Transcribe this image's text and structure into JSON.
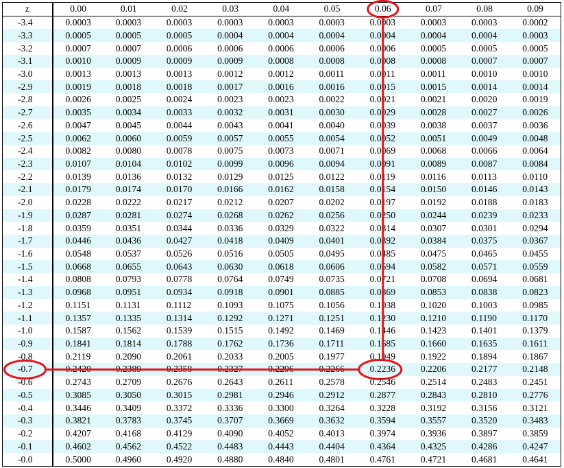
{
  "table": {
    "z_header": "z",
    "column_headers": [
      "0.00",
      "0.01",
      "0.02",
      "0.03",
      "0.04",
      "0.05",
      "0.06",
      "0.07",
      "0.08",
      "0.09"
    ],
    "rows": [
      {
        "z": "-3.4",
        "values": [
          "0.0003",
          "0.0003",
          "0.0003",
          "0.0003",
          "0.0003",
          "0.0003",
          "0.0003",
          "0.0003",
          "0.0003",
          "0.0002"
        ]
      },
      {
        "z": "-3.3",
        "values": [
          "0.0005",
          "0.0005",
          "0.0005",
          "0.0004",
          "0.0004",
          "0.0004",
          "0.0004",
          "0.0004",
          "0.0004",
          "0.0003"
        ]
      },
      {
        "z": "-3.2",
        "values": [
          "0.0007",
          "0.0007",
          "0.0006",
          "0.0006",
          "0.0006",
          "0.0006",
          "0.0006",
          "0.0005",
          "0.0005",
          "0.0005"
        ]
      },
      {
        "z": "-3.1",
        "values": [
          "0.0010",
          "0.0009",
          "0.0009",
          "0.0009",
          "0.0008",
          "0.0008",
          "0.0008",
          "0.0008",
          "0.0007",
          "0.0007"
        ]
      },
      {
        "z": "-3.0",
        "values": [
          "0.0013",
          "0.0013",
          "0.0013",
          "0.0012",
          "0.0012",
          "0.0011",
          "0.0011",
          "0.0011",
          "0.0010",
          "0.0010"
        ]
      },
      {
        "z": "-2.9",
        "values": [
          "0.0019",
          "0.0018",
          "0.0018",
          "0.0017",
          "0.0016",
          "0.0016",
          "0.0015",
          "0.0015",
          "0.0014",
          "0.0014"
        ]
      },
      {
        "z": "-2.8",
        "values": [
          "0.0026",
          "0.0025",
          "0.0024",
          "0.0023",
          "0.0023",
          "0.0022",
          "0.0021",
          "0.0021",
          "0.0020",
          "0.0019"
        ]
      },
      {
        "z": "-2.7",
        "values": [
          "0.0035",
          "0.0034",
          "0.0033",
          "0.0032",
          "0.0031",
          "0.0030",
          "0.0029",
          "0.0028",
          "0.0027",
          "0.0026"
        ]
      },
      {
        "z": "-2.6",
        "values": [
          "0.0047",
          "0.0045",
          "0.0044",
          "0.0043",
          "0.0041",
          "0.0040",
          "0.0039",
          "0.0038",
          "0.0037",
          "0.0036"
        ]
      },
      {
        "z": "-2.5",
        "values": [
          "0.0062",
          "0.0060",
          "0.0059",
          "0.0057",
          "0.0055",
          "0.0054",
          "0.0052",
          "0.0051",
          "0.0049",
          "0.0048"
        ]
      },
      {
        "z": "-2.4",
        "values": [
          "0.0082",
          "0.0080",
          "0.0078",
          "0.0075",
          "0.0073",
          "0.0071",
          "0.0069",
          "0.0068",
          "0.0066",
          "0.0064"
        ]
      },
      {
        "z": "-2.3",
        "values": [
          "0.0107",
          "0.0104",
          "0.0102",
          "0.0099",
          "0.0096",
          "0.0094",
          "0.0091",
          "0.0089",
          "0.0087",
          "0.0084"
        ]
      },
      {
        "z": "-2.2",
        "values": [
          "0.0139",
          "0.0136",
          "0.0132",
          "0.0129",
          "0.0125",
          "0.0122",
          "0.0119",
          "0.0116",
          "0.0113",
          "0.0110"
        ]
      },
      {
        "z": "-2.1",
        "values": [
          "0.0179",
          "0.0174",
          "0.0170",
          "0.0166",
          "0.0162",
          "0.0158",
          "0.0154",
          "0.0150",
          "0.0146",
          "0.0143"
        ]
      },
      {
        "z": "-2.0",
        "values": [
          "0.0228",
          "0.0222",
          "0.0217",
          "0.0212",
          "0.0207",
          "0.0202",
          "0.0197",
          "0.0192",
          "0.0188",
          "0.0183"
        ]
      },
      {
        "z": "-1.9",
        "values": [
          "0.0287",
          "0.0281",
          "0.0274",
          "0.0268",
          "0.0262",
          "0.0256",
          "0.0250",
          "0.0244",
          "0.0239",
          "0.0233"
        ]
      },
      {
        "z": "-1.8",
        "values": [
          "0.0359",
          "0.0351",
          "0.0344",
          "0.0336",
          "0.0329",
          "0.0322",
          "0.0314",
          "0.0307",
          "0.0301",
          "0.0294"
        ]
      },
      {
        "z": "-1.7",
        "values": [
          "0.0446",
          "0.0436",
          "0.0427",
          "0.0418",
          "0.0409",
          "0.0401",
          "0.0392",
          "0.0384",
          "0.0375",
          "0.0367"
        ]
      },
      {
        "z": "-1.6",
        "values": [
          "0.0548",
          "0.0537",
          "0.0526",
          "0.0516",
          "0.0505",
          "0.0495",
          "0.0485",
          "0.0475",
          "0.0465",
          "0.0455"
        ]
      },
      {
        "z": "-1.5",
        "values": [
          "0.0668",
          "0.0655",
          "0.0643",
          "0.0630",
          "0.0618",
          "0.0606",
          "0.0594",
          "0.0582",
          "0.0571",
          "0.0559"
        ]
      },
      {
        "z": "-1.4",
        "values": [
          "0.0808",
          "0.0793",
          "0.0778",
          "0.0764",
          "0.0749",
          "0.0735",
          "0.0721",
          "0.0708",
          "0.0694",
          "0.0681"
        ]
      },
      {
        "z": "-1.3",
        "values": [
          "0.0968",
          "0.0951",
          "0.0934",
          "0.0918",
          "0.0901",
          "0.0885",
          "0.0869",
          "0.0853",
          "0.0838",
          "0.0823"
        ]
      },
      {
        "z": "-1.2",
        "values": [
          "0.1151",
          "0.1131",
          "0.1112",
          "0.1093",
          "0.1075",
          "0.1056",
          "0.1038",
          "0.1020",
          "0.1003",
          "0.0985"
        ]
      },
      {
        "z": "-1.1",
        "values": [
          "0.1357",
          "0.1335",
          "0.1314",
          "0.1292",
          "0.1271",
          "0.1251",
          "0.1230",
          "0.1210",
          "0.1190",
          "0.1170"
        ]
      },
      {
        "z": "-1.0",
        "values": [
          "0.1587",
          "0.1562",
          "0.1539",
          "0.1515",
          "0.1492",
          "0.1469",
          "0.1446",
          "0.1423",
          "0.1401",
          "0.1379"
        ]
      },
      {
        "z": "-0.9",
        "values": [
          "0.1841",
          "0.1814",
          "0.1788",
          "0.1762",
          "0.1736",
          "0.1711",
          "0.1685",
          "0.1660",
          "0.1635",
          "0.1611"
        ]
      },
      {
        "z": "-0.8",
        "values": [
          "0.2119",
          "0.2090",
          "0.2061",
          "0.2033",
          "0.2005",
          "0.1977",
          "0.1949",
          "0.1922",
          "0.1894",
          "0.1867"
        ]
      },
      {
        "z": "-0.7",
        "values": [
          "0.2420",
          "0.2389",
          "0.2358",
          "0.2327",
          "0.2296",
          "0.2266",
          "0.2236",
          "0.2206",
          "0.2177",
          "0.2148"
        ]
      },
      {
        "z": "-0.6",
        "values": [
          "0.2743",
          "0.2709",
          "0.2676",
          "0.2643",
          "0.2611",
          "0.2578",
          "0.2546",
          "0.2514",
          "0.2483",
          "0.2451"
        ]
      },
      {
        "z": "-0.5",
        "values": [
          "0.3085",
          "0.3050",
          "0.3015",
          "0.2981",
          "0.2946",
          "0.2912",
          "0.2877",
          "0.2843",
          "0.2810",
          "0.2776"
        ]
      },
      {
        "z": "-0.4",
        "values": [
          "0.3446",
          "0.3409",
          "0.3372",
          "0.3336",
          "0.3300",
          "0.3264",
          "0.3228",
          "0.3192",
          "0.3156",
          "0.3121"
        ]
      },
      {
        "z": "-0.3",
        "values": [
          "0.3821",
          "0.3783",
          "0.3745",
          "0.3707",
          "0.3669",
          "0.3632",
          "0.3594",
          "0.3557",
          "0.3520",
          "0.3483"
        ]
      },
      {
        "z": "-0.2",
        "values": [
          "0.4207",
          "0.4168",
          "0.4129",
          "0.4090",
          "0.4052",
          "0.4013",
          "0.3974",
          "0.3936",
          "0.3897",
          "0.3859"
        ]
      },
      {
        "z": "-0.1",
        "values": [
          "0.4602",
          "0.4562",
          "0.4522",
          "0.4483",
          "0.4443",
          "0.4404",
          "0.4364",
          "0.4325",
          "0.4286",
          "0.4247"
        ]
      },
      {
        "z": "-0.0",
        "values": [
          "0.5000",
          "0.4960",
          "0.4920",
          "0.4880",
          "0.4840",
          "0.4801",
          "0.4761",
          "0.4721",
          "0.4681",
          "0.4641"
        ]
      }
    ]
  },
  "highlight": {
    "column_header": "0.06",
    "row_z": "-0.7",
    "cell_value": "0.2236",
    "color": "#e3141b"
  },
  "colors": {
    "shade": "#dff8fb",
    "text": "#000000"
  }
}
